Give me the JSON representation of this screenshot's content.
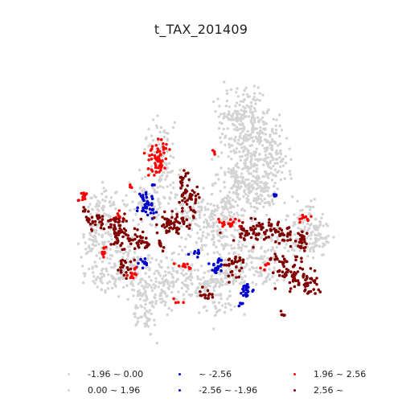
{
  "title": "t_TAX_201409",
  "colors": {
    "grey": "#d3d3d3",
    "blue": "#0000cd",
    "red": "#ff0000",
    "darkred": "#800000"
  },
  "legend": {
    "items": [
      {
        "label": "-1.96 ~ 0.00",
        "color": "#d3d3d3"
      },
      {
        "label": "0.00 ~ 1.96",
        "color": "#d3d3d3"
      },
      {
        "label": "~ -2.56",
        "color": "#0000cd"
      },
      {
        "label": "-2.56 ~ -1.96",
        "color": "#0000cd"
      },
      {
        "label": "1.96 ~ 2.56",
        "color": "#ff0000"
      },
      {
        "label": "2.56 ~",
        "color": "#800000"
      }
    ]
  }
}
